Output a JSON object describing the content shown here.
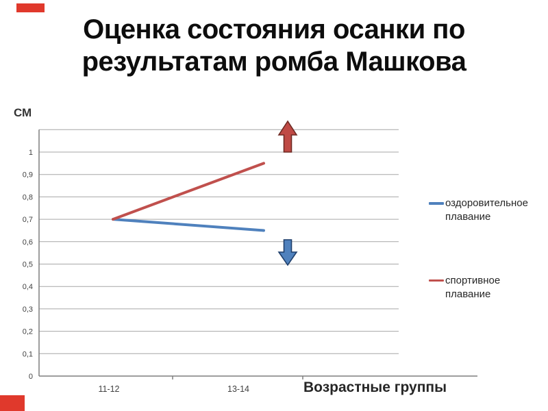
{
  "title": {
    "line1": "Оценка состояния осанки по",
    "line2": "результатам ромба Машкова"
  },
  "decorations": {
    "accent_color": "#e0392c"
  },
  "chart_data": {
    "type": "line",
    "title": "Оценка состояния осанки по результатам ромба Машкова",
    "y_unit_label": "СМ",
    "x_axis_title": "Возрастные группы",
    "categories": [
      "11-12",
      "13-14"
    ],
    "y_tick_labels": [
      "0",
      "0,1",
      "0,2",
      "0,3",
      "0,4",
      "0,5",
      "0,6",
      "0,7",
      "0,8",
      "0,9",
      "1"
    ],
    "ylim": [
      0,
      1.1
    ],
    "y_major_unit": 0.1,
    "grid": true,
    "legend_position": "right",
    "series": [
      {
        "name": "оздоровительное плавание",
        "legend_label": "оздоровительное\nплавание",
        "color": "#4f81bd",
        "values": [
          0.7,
          0.65
        ]
      },
      {
        "name": "спортивное плавание",
        "legend_label": "спортивное\nплавание",
        "color": "#c0504d",
        "values": [
          0.7,
          0.95
        ]
      }
    ],
    "annotations": [
      {
        "name": "increase-arrow",
        "direction": "up",
        "fill": "#bf4a45",
        "outline": "#6e2a23"
      },
      {
        "name": "decrease-arrow",
        "direction": "down",
        "fill": "#4f81bd",
        "outline": "#1f3f6b"
      }
    ],
    "grid_color": "#a6a6a6",
    "axis_color": "#7f7f7f",
    "tick_label_color": "#404040"
  }
}
